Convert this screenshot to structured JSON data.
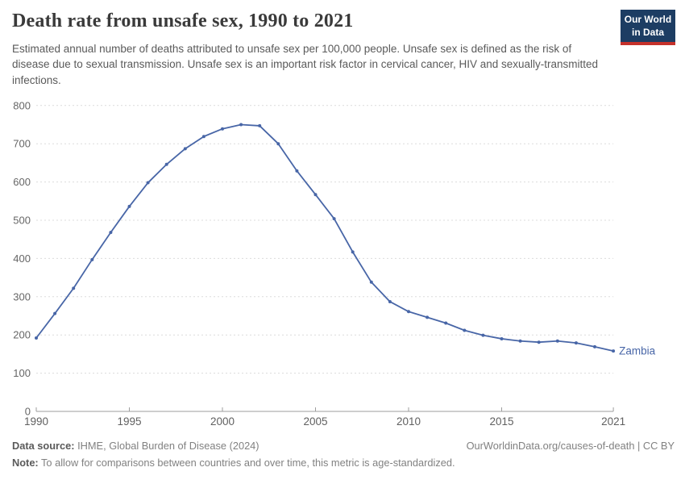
{
  "header": {
    "title": "Death rate from unsafe sex, 1990 to 2021",
    "subtitle": "Estimated annual number of deaths attributed to unsafe sex per 100,000 people. Unsafe sex is defined as the risk of disease due to sexual transmission. Unsafe sex is an important risk factor in cervical cancer, HIV and sexually-transmitted infections.",
    "logo": {
      "line1": "Our World",
      "line2": "in Data",
      "bg_color": "#1d3d63",
      "accent_color": "#c5312b"
    }
  },
  "chart_data": {
    "type": "line",
    "title": "Death rate from unsafe sex, 1990 to 2021",
    "xlabel": "",
    "ylabel": "",
    "ylim": [
      0,
      800
    ],
    "yticks": [
      0,
      100,
      200,
      300,
      400,
      500,
      600,
      700,
      800
    ],
    "xticks": [
      1990,
      1995,
      2000,
      2005,
      2010,
      2015,
      2021
    ],
    "grid": "horizontal-dashed",
    "legend_position": "end-of-line-label",
    "x": [
      1990,
      1991,
      1992,
      1993,
      1994,
      1995,
      1996,
      1997,
      1998,
      1999,
      2000,
      2001,
      2002,
      2003,
      2004,
      2005,
      2006,
      2007,
      2008,
      2009,
      2010,
      2011,
      2012,
      2013,
      2014,
      2015,
      2016,
      2017,
      2018,
      2019,
      2020,
      2021
    ],
    "series": [
      {
        "name": "Zambia",
        "color": "#4866a7",
        "values": [
          192,
          256,
          322,
          397,
          468,
          536,
          598,
          646,
          687,
          719,
          739,
          750,
          747,
          700,
          629,
          567,
          504,
          417,
          338,
          287,
          261,
          246,
          231,
          212,
          199,
          190,
          184,
          181,
          184,
          179,
          169,
          158
        ]
      }
    ],
    "axis_colors": {
      "gridline": "#dcdcdc",
      "axis_line": "#9e9e9e",
      "ytick_label": "#666666",
      "xtick_label": "#606060"
    }
  },
  "footer": {
    "datasource_label": "Data source:",
    "datasource_value": " IHME, Global Burden of Disease (2024)",
    "link": "OurWorldinData.org/causes-of-death | CC BY",
    "note_label": "Note:",
    "note_value": " To allow for comparisons between countries and over time, this metric is age-standardized."
  }
}
